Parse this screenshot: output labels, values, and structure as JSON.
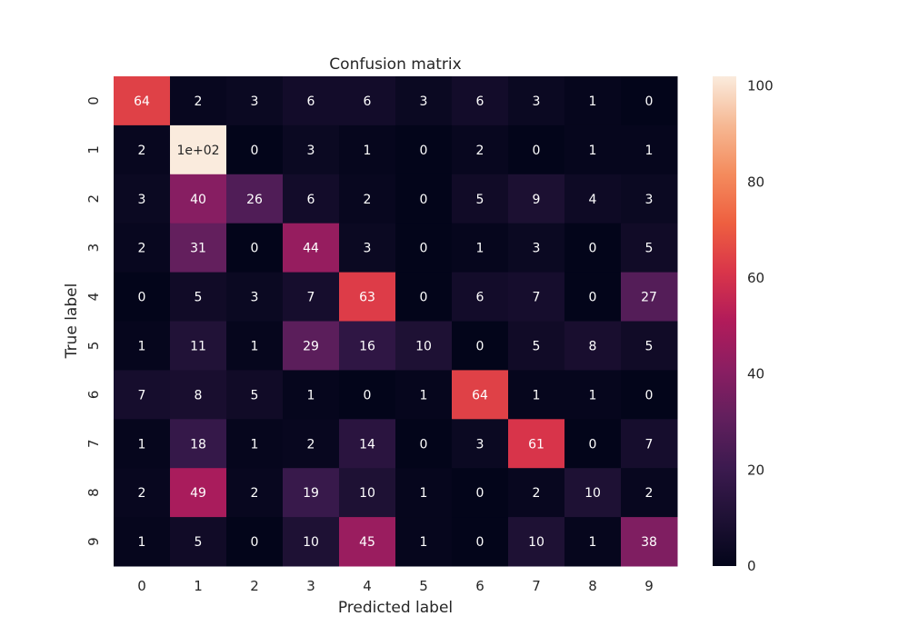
{
  "chart_data": {
    "type": "heatmap",
    "title": "Confusion matrix",
    "xlabel": "Predicted label",
    "ylabel": "True label",
    "x_categories": [
      "0",
      "1",
      "2",
      "3",
      "4",
      "5",
      "6",
      "7",
      "8",
      "9"
    ],
    "y_categories": [
      "0",
      "1",
      "2",
      "3",
      "4",
      "5",
      "6",
      "7",
      "8",
      "9"
    ],
    "values": [
      [
        64,
        2,
        3,
        6,
        6,
        3,
        6,
        3,
        1,
        0
      ],
      [
        2,
        102,
        0,
        3,
        1,
        0,
        2,
        0,
        1,
        1
      ],
      [
        3,
        40,
        26,
        6,
        2,
        0,
        5,
        9,
        4,
        3
      ],
      [
        2,
        31,
        0,
        44,
        3,
        0,
        1,
        3,
        0,
        5
      ],
      [
        0,
        5,
        3,
        7,
        63,
        0,
        6,
        7,
        0,
        27
      ],
      [
        1,
        11,
        1,
        29,
        16,
        10,
        0,
        5,
        8,
        5
      ],
      [
        7,
        8,
        5,
        1,
        0,
        1,
        64,
        1,
        1,
        0
      ],
      [
        1,
        18,
        1,
        2,
        14,
        0,
        3,
        61,
        0,
        7
      ],
      [
        2,
        49,
        2,
        19,
        10,
        1,
        0,
        2,
        10,
        2
      ],
      [
        1,
        5,
        0,
        10,
        45,
        1,
        0,
        10,
        1,
        38
      ]
    ],
    "cell_labels": [
      [
        "64",
        "2",
        "3",
        "6",
        "6",
        "3",
        "6",
        "3",
        "1",
        "0"
      ],
      [
        "2",
        "1e+02",
        "0",
        "3",
        "1",
        "0",
        "2",
        "0",
        "1",
        "1"
      ],
      [
        "3",
        "40",
        "26",
        "6",
        "2",
        "0",
        "5",
        "9",
        "4",
        "3"
      ],
      [
        "2",
        "31",
        "0",
        "44",
        "3",
        "0",
        "1",
        "3",
        "0",
        "5"
      ],
      [
        "0",
        "5",
        "3",
        "7",
        "63",
        "0",
        "6",
        "7",
        "0",
        "27"
      ],
      [
        "1",
        "11",
        "1",
        "29",
        "16",
        "10",
        "0",
        "5",
        "8",
        "5"
      ],
      [
        "7",
        "8",
        "5",
        "1",
        "0",
        "1",
        "64",
        "1",
        "1",
        "0"
      ],
      [
        "1",
        "18",
        "1",
        "2",
        "14",
        "0",
        "3",
        "61",
        "0",
        "7"
      ],
      [
        "2",
        "49",
        "2",
        "19",
        "10",
        "1",
        "0",
        "2",
        "10",
        "2"
      ],
      [
        "1",
        "5",
        "0",
        "10",
        "45",
        "1",
        "0",
        "10",
        "1",
        "38"
      ]
    ],
    "colorbar": {
      "range": [
        0,
        102
      ],
      "ticks": [
        0,
        20,
        40,
        60,
        80,
        100
      ],
      "tick_labels": [
        "0",
        "20",
        "40",
        "60",
        "80",
        "100"
      ],
      "colormap": "rocket"
    },
    "grid": false
  }
}
